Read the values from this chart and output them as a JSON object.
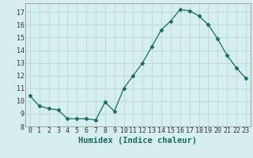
{
  "x": [
    0,
    1,
    2,
    3,
    4,
    5,
    6,
    7,
    8,
    9,
    10,
    11,
    12,
    13,
    14,
    15,
    16,
    17,
    18,
    19,
    20,
    21,
    22,
    23
  ],
  "y": [
    10.4,
    9.6,
    9.4,
    9.3,
    8.6,
    8.6,
    8.6,
    8.5,
    9.9,
    9.2,
    11.0,
    12.0,
    13.0,
    14.3,
    15.6,
    16.3,
    17.2,
    17.1,
    16.7,
    16.0,
    14.9,
    13.6,
    12.6,
    11.8
  ],
  "xlabel": "Humidex (Indice chaleur)",
  "xlim": [
    -0.5,
    23.5
  ],
  "ylim": [
    8.0,
    17.7
  ],
  "yticks": [
    8,
    9,
    10,
    11,
    12,
    13,
    14,
    15,
    16,
    17
  ],
  "xticks": [
    0,
    1,
    2,
    3,
    4,
    5,
    6,
    7,
    8,
    9,
    10,
    11,
    12,
    13,
    14,
    15,
    16,
    17,
    18,
    19,
    20,
    21,
    22,
    23
  ],
  "line_color": "#1a6b5e",
  "marker": "D",
  "marker_size": 2.5,
  "bg_color": "#d6eeee",
  "grid_color": "#b8d8d8",
  "tick_label_fontsize": 6.0,
  "xlabel_fontsize": 7.5
}
